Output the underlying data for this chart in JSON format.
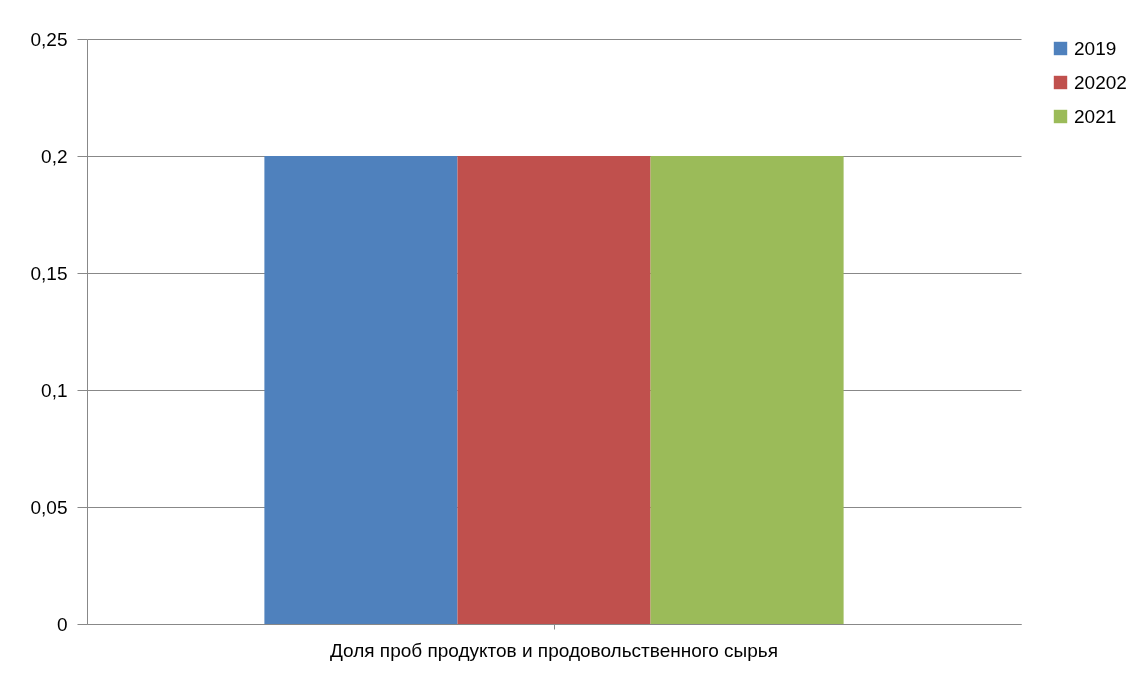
{
  "chart_data": {
    "type": "bar",
    "categories": [
      "Доля проб продуктов и продовольственного сырья"
    ],
    "series": [
      {
        "name": "2019",
        "color": "#4f81bd",
        "values": [
          0.2
        ]
      },
      {
        "name": "20202",
        "color": "#c0504d",
        "values": [
          0.2
        ]
      },
      {
        "name": "2021",
        "color": "#9bbb59",
        "values": [
          0.2
        ]
      }
    ],
    "ylim": [
      0,
      0.25
    ],
    "yticks": [
      0,
      {
        "value": 0.05,
        "label": "0,05"
      },
      {
        "value": 0.1,
        "label": "0,1"
      },
      {
        "value": 0.15,
        "label": "0,15"
      },
      {
        "value": 0.2,
        "label": "0,2"
      },
      {
        "value": 0.25,
        "label": "0,25"
      }
    ],
    "grid": "y",
    "legend": "right"
  }
}
